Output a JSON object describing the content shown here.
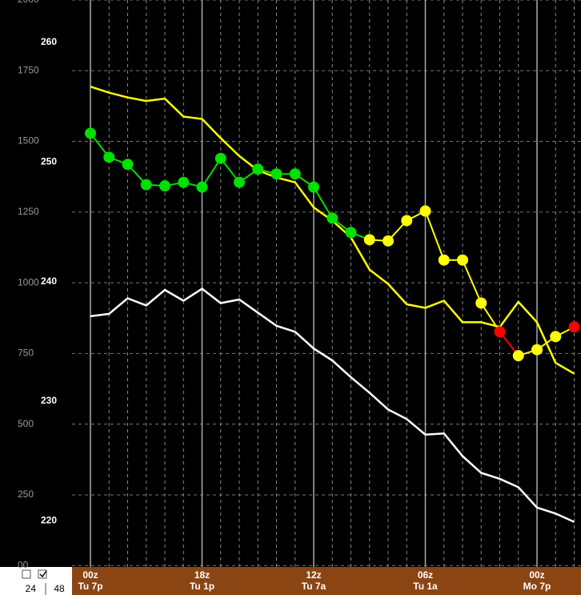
{
  "chart_data": {
    "type": "line",
    "categories": [
      "00z",
      null,
      null,
      null,
      null,
      null,
      "18z",
      null,
      null,
      null,
      null,
      null,
      "12z",
      null,
      null,
      null,
      null,
      null,
      "06z",
      null,
      null,
      null,
      null,
      null,
      "00z",
      null,
      null
    ],
    "category_days": [
      "Tu 7p",
      null,
      null,
      null,
      null,
      null,
      "Tu 1p",
      null,
      null,
      null,
      null,
      null,
      "Tu 7a",
      null,
      null,
      null,
      null,
      null,
      "Tu 1a",
      null,
      null,
      null,
      null,
      null,
      "Mo 7p",
      null,
      null
    ],
    "ylim": [
      216.13,
      263.55
    ],
    "yticks": [
      220,
      230,
      240,
      250,
      260
    ],
    "y2lim": [
      -5,
      2000
    ],
    "y2ticks": [
      {
        "value": 0,
        "label": "00"
      },
      250,
      500,
      750,
      1000,
      1250,
      1500,
      1750,
      2000
    ],
    "grid": true,
    "series": [
      {
        "name": null,
        "color": "#ffff00",
        "markers": false,
        "values": [
          256.3,
          255.8,
          255.4,
          255.1,
          255.3,
          253.8,
          253.6,
          252.0,
          250.5,
          249.3,
          248.7,
          248.3,
          246.2,
          245.1,
          243.7,
          241.0,
          239.8,
          238.1,
          237.8,
          238.4,
          236.6,
          236.6,
          236.2,
          238.3,
          236.6,
          233.2,
          232.3
        ]
      },
      {
        "name": null,
        "color": "#ffffff",
        "markers": false,
        "values": [
          237.1,
          237.3,
          238.6,
          238.0,
          239.3,
          238.4,
          239.4,
          238.2,
          238.5,
          237.4,
          236.3,
          235.8,
          234.4,
          233.4,
          232.0,
          230.7,
          229.3,
          228.5,
          227.2,
          227.3,
          225.4,
          224.0,
          223.5,
          222.8,
          221.1,
          220.6,
          219.9
        ]
      },
      {
        "name": null,
        "color": "#00e000",
        "markers": true,
        "point_colors": [
          "#00e000",
          "#00e000",
          "#00e000",
          "#00e000",
          "#00e000",
          "#00e000",
          "#00e000",
          "#00e000",
          "#00e000",
          "#00e000",
          "#00e000",
          "#00e000",
          "#00e000",
          "#00e000",
          "#00e000",
          "#ffff00",
          "#ffff00",
          "#ffff00",
          "#ffff00",
          "#ffff00",
          "#ffff00",
          "#ffff00",
          "#ff0000",
          "#ffff00",
          "#ffff00",
          "#ffff00",
          "#ff0000"
        ],
        "values": [
          252.4,
          250.4,
          249.8,
          248.1,
          248.0,
          248.3,
          247.9,
          250.3,
          248.3,
          249.4,
          249.0,
          249.0,
          247.9,
          245.3,
          244.1,
          243.5,
          243.4,
          245.1,
          245.9,
          241.8,
          241.8,
          238.2,
          235.8,
          233.8,
          234.3,
          235.4,
          236.2
        ]
      }
    ]
  },
  "controls": {
    "hours": [
      "24",
      "48"
    ]
  }
}
